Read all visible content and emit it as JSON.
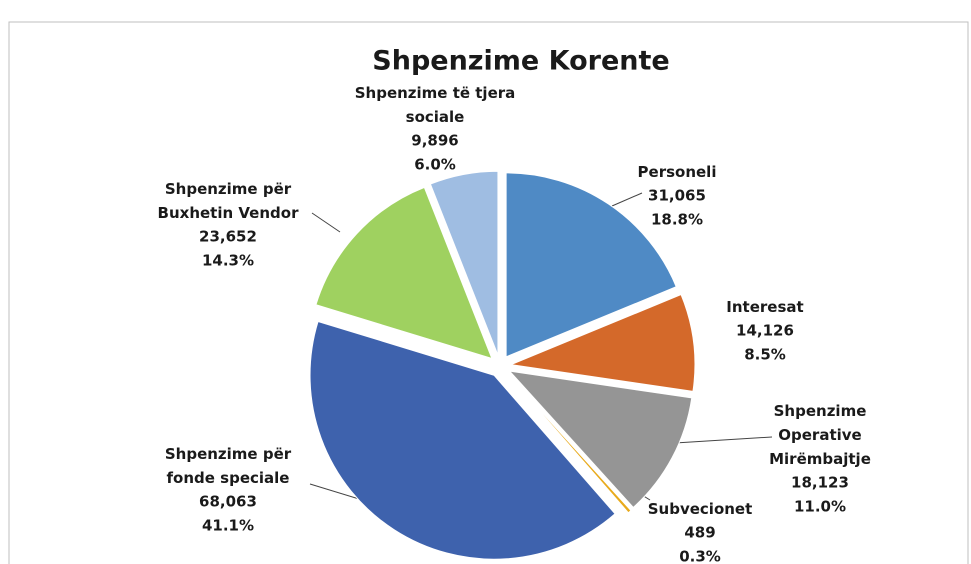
{
  "chart_data": {
    "type": "pie",
    "title": "Shpenzime Korente",
    "categories": [
      "Personeli",
      "Interesat",
      "Shpenzime Operative Mirëmbajtje",
      "Subvecionet",
      "Shpenzime për fonde speciale",
      "Shpenzime për Buxhetin Vendor",
      "Shpenzime të tjera sociale"
    ],
    "values": [
      31065,
      14126,
      18123,
      489,
      68063,
      23652,
      9896
    ],
    "value_labels": [
      "31,065",
      "14,126",
      "18,123",
      "489",
      "68,063",
      "23,652",
      "9,896"
    ],
    "percent_labels": [
      "18.8%",
      "8.5%",
      "11.0%",
      "0.3%",
      "41.1%",
      "14.3%",
      "6.0%"
    ],
    "colors": [
      "#4f8ac5",
      "#d4692a",
      "#959595",
      "#e8aa1c",
      "#3e62ad",
      "#9fd160",
      "#9fbde2"
    ]
  }
}
